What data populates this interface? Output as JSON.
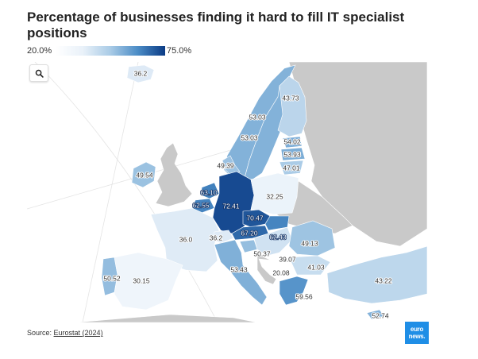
{
  "title": "Percentage of businesses finding it hard to fill IT specialist positions",
  "legend": {
    "min_label": "20.0%",
    "max_label": "75.0%",
    "min": 20.0,
    "max": 75.0
  },
  "source": {
    "prefix": "Source: ",
    "link_text": "Eurostat (2024)"
  },
  "logo": {
    "line1": "euro",
    "line2": "news."
  },
  "colors": {
    "no_data": "#c9c9c9",
    "scale_low": "#ffffff",
    "scale_high": "#0b3b85"
  },
  "map_values": [
    {
      "region": "iceland",
      "label": "36.2",
      "value": 36.2
    },
    {
      "region": "norway",
      "label": "53.03",
      "value": 53.03
    },
    {
      "region": "sweden",
      "label": "53.03",
      "value": 53.03
    },
    {
      "region": "finland",
      "label": "43.73",
      "value": 43.73
    },
    {
      "region": "estonia",
      "label": "54.02",
      "value": 54.02
    },
    {
      "region": "latvia",
      "label": "53.93",
      "value": 53.93
    },
    {
      "region": "lithuania",
      "label": "47.01",
      "value": 47.01
    },
    {
      "region": "denmark",
      "label": "49.39",
      "value": 49.39
    },
    {
      "region": "ireland",
      "label": "49.54",
      "value": 49.54
    },
    {
      "region": "netherlands",
      "label": "63.10",
      "value": 63.1
    },
    {
      "region": "belgium",
      "label": "62.55",
      "value": 62.55
    },
    {
      "region": "germany",
      "label": "72.41",
      "value": 72.41
    },
    {
      "region": "poland",
      "label": "32.25",
      "value": 32.25
    },
    {
      "region": "czechia",
      "label": "70.47",
      "value": 70.47
    },
    {
      "region": "austria",
      "label": "67.20",
      "value": 67.2
    },
    {
      "region": "slovakia",
      "label": "62.43",
      "value": 62.43
    },
    {
      "region": "france",
      "label": "36.0",
      "value": 36.0
    },
    {
      "region": "switzerland",
      "label": "36.2",
      "value": 36.2
    },
    {
      "region": "slovenia",
      "label": "50.37",
      "value": 50.37
    },
    {
      "region": "hungary",
      "label": "39.07",
      "value": 39.07
    },
    {
      "region": "romania",
      "label": "49.13",
      "value": 49.13
    },
    {
      "region": "bulgaria",
      "label": "41.03",
      "value": 41.03
    },
    {
      "region": "italy",
      "label": "53.43",
      "value": 53.43
    },
    {
      "region": "bosnia",
      "label": "20.08",
      "value": 20.08
    },
    {
      "region": "greece",
      "label": "59.56",
      "value": 59.56
    },
    {
      "region": "portugal",
      "label": "50.52",
      "value": 50.52
    },
    {
      "region": "spain",
      "label": "30.15",
      "value": 30.15
    },
    {
      "region": "turkey",
      "label": "43.22",
      "value": 43.22
    },
    {
      "region": "cyprus",
      "label": "52.74",
      "value": 52.74
    }
  ]
}
